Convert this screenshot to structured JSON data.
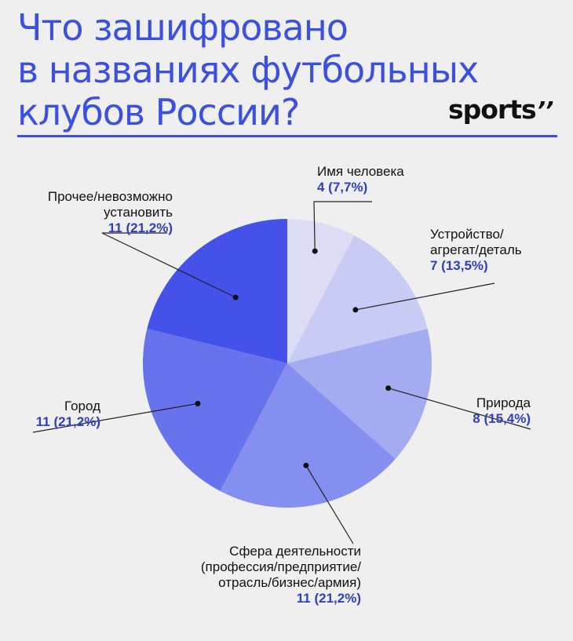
{
  "title_lines": [
    "Что зашифровано",
    "в названиях футбольных",
    "клубов России?"
  ],
  "logo": {
    "text": "sports",
    "mark": "’’"
  },
  "colors": {
    "title": "#3b4fe0",
    "rule": "#3b4fe0",
    "value": "#2f3fbf",
    "leader": "#222222"
  },
  "chart_data": {
    "type": "pie",
    "start_angle": "12 o'clock",
    "direction": "clockwise",
    "slices": [
      {
        "label_lines": [
          "Имя человека"
        ],
        "value": 4,
        "value_label": "4 (7,7%)",
        "color": "#dcdcf4"
      },
      {
        "label_lines": [
          "Устройство/",
          "агрегат/деталь"
        ],
        "value": 7,
        "value_label": "7 (13,5%)",
        "color": "#c8cbf4"
      },
      {
        "label_lines": [
          "Природа"
        ],
        "value": 8,
        "value_label": "8 (15,4%)",
        "color": "#a4abf0"
      },
      {
        "label_lines": [
          "Сфера деятельности",
          "(профессия/предприятие/",
          "отрасль/бизнес/армия)"
        ],
        "value": 11,
        "value_label": "11 (21,2%)",
        "color": "#858ff0"
      },
      {
        "label_lines": [
          "Город"
        ],
        "value": 11,
        "value_label": "11 (21,2%)",
        "color": "#6673ec"
      },
      {
        "label_lines": [
          "Прочее/невозможно",
          "установить"
        ],
        "value": 11,
        "value_label": "11 (21,2%)",
        "color": "#4552ea"
      }
    ]
  }
}
